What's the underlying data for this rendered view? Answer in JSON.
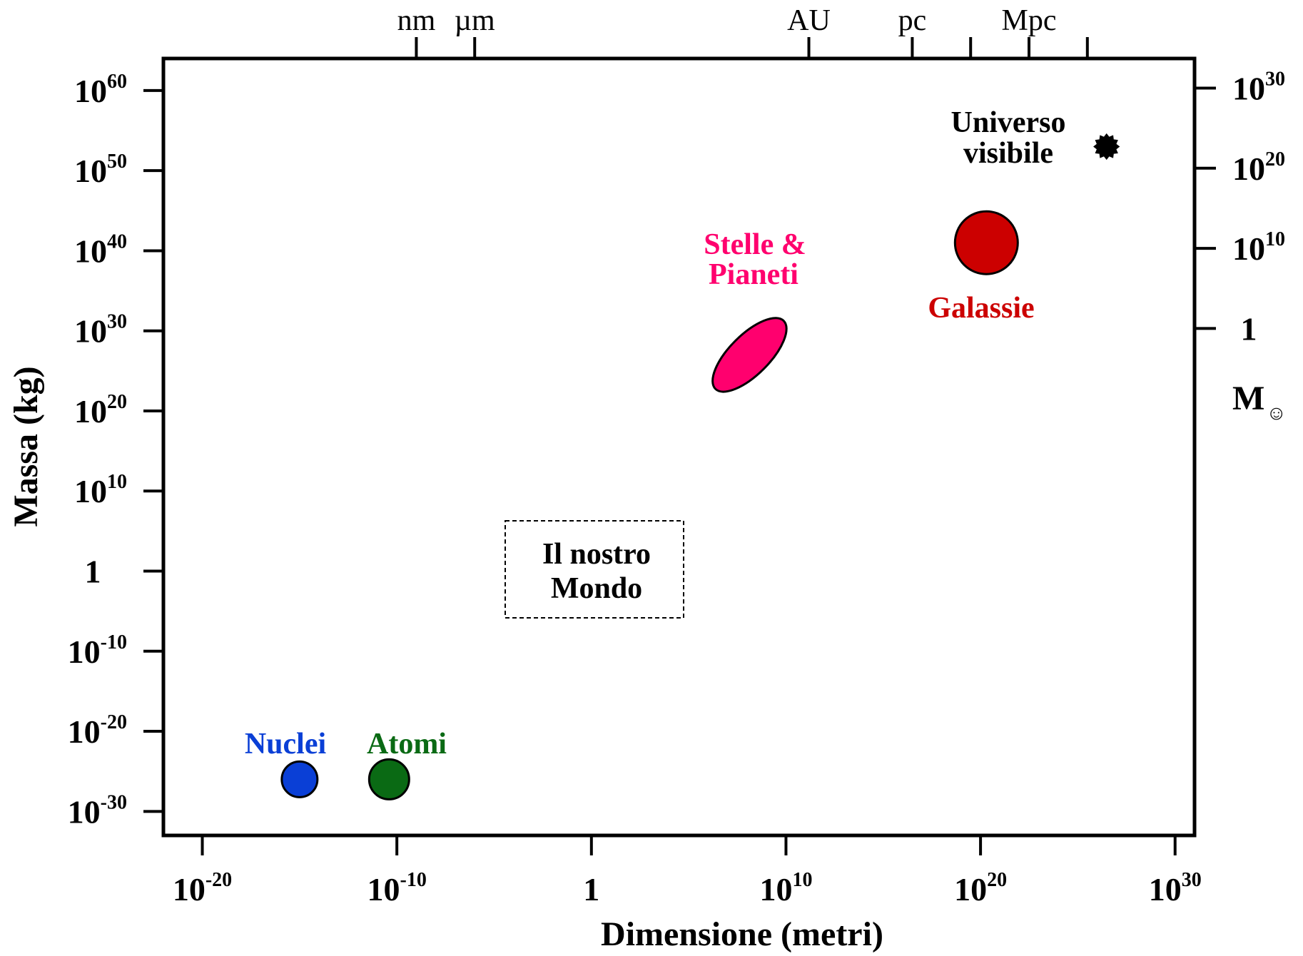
{
  "chart_data": {
    "type": "scatter",
    "title": "",
    "xlabel": "Dimensione (metri)",
    "ylabel": "Massa  (kg)",
    "xscale": "log",
    "yscale": "log",
    "xlim": [
      1e-22,
      1e+31
    ],
    "ylim": [
      1e-33,
      1e+64
    ],
    "grid": false,
    "x_ticks": [
      {
        "value": 1e-20,
        "base": "10",
        "exp": "-20"
      },
      {
        "value": 1e-10,
        "base": "10",
        "exp": "-10"
      },
      {
        "value": 1,
        "base": "1",
        "exp": ""
      },
      {
        "value": 10000000000.0,
        "base": "10",
        "exp": "10"
      },
      {
        "value": 1e+20,
        "base": "10",
        "exp": "20"
      },
      {
        "value": 1e+30,
        "base": "10",
        "exp": "30"
      }
    ],
    "y_ticks": [
      {
        "value": 1e-30,
        "base": "10",
        "exp": "-30"
      },
      {
        "value": 1e-20,
        "base": "10",
        "exp": "-20"
      },
      {
        "value": 1e-10,
        "base": "10",
        "exp": "-10"
      },
      {
        "value": 1,
        "base": "1",
        "exp": ""
      },
      {
        "value": 10000000000.0,
        "base": "10",
        "exp": "10"
      },
      {
        "value": 1e+20,
        "base": "10",
        "exp": "20"
      },
      {
        "value": 1e+30,
        "base": "10",
        "exp": "30"
      },
      {
        "value": 1e+40,
        "base": "10",
        "exp": "40"
      },
      {
        "value": 1e+50,
        "base": "10",
        "exp": "50"
      },
      {
        "value": 1e+60,
        "base": "10",
        "exp": "60"
      }
    ],
    "top_axis": {
      "ticks": [
        {
          "label": "nm",
          "value": 1e-09
        },
        {
          "label": "µm",
          "value": 1e-06
        },
        {
          "label": "AU",
          "value": 150000000000.0
        },
        {
          "label": "pc",
          "value": 3.1e+16
        },
        {
          "label": "",
          "value": 3.1e+19
        },
        {
          "label": "Mpc",
          "value": 3.1e+22
        },
        {
          "label": "",
          "value": 3.1e+25
        }
      ]
    },
    "right_axis": {
      "unit_label": "M",
      "unit_symbol": "☺",
      "ticks": [
        {
          "value_kg": 2e+30,
          "base": "1",
          "exp": ""
        },
        {
          "value_kg": 2e+40,
          "base": "10",
          "exp": "10"
        },
        {
          "value_kg": 2e+50,
          "base": "10",
          "exp": "20"
        },
        {
          "value_kg": 2e+60,
          "base": "10",
          "exp": "30"
        }
      ]
    },
    "points": [
      {
        "name": "Nuclei",
        "x": 1e-15,
        "y": 1e-26,
        "color": "#0a3fd6",
        "shape": "circle"
      },
      {
        "name": "Atomi",
        "x": 4e-11,
        "y": 1e-26,
        "color": "#0a6a14",
        "shape": "circle"
      },
      {
        "name": "Galassie",
        "x": 2e+20,
        "y": 1e+41,
        "color": "#cc0000",
        "shape": "circle"
      },
      {
        "name": "Universo visibile",
        "x": 3e+26,
        "y": 1e+53,
        "color": "#000000",
        "shape": "star"
      }
    ],
    "regions": [
      {
        "name": "Stelle & Pianeti",
        "x_range": [
          3000000.0,
          6000000000.0
        ],
        "y_range": [
          1e+23,
          1e+31
        ],
        "color": "#ff006e",
        "shape": "ellipse"
      }
    ],
    "annotations": {
      "nuclei": "Nuclei",
      "atomi": "Atomi",
      "stelle_line1": "Stelle &",
      "stelle_line2": "Pianeti",
      "galassie": "Galassie",
      "universo_line1": "Universo",
      "universo_line2": "visibile",
      "mondo_line1": "Il nostro",
      "mondo_line2": "Mondo"
    }
  }
}
